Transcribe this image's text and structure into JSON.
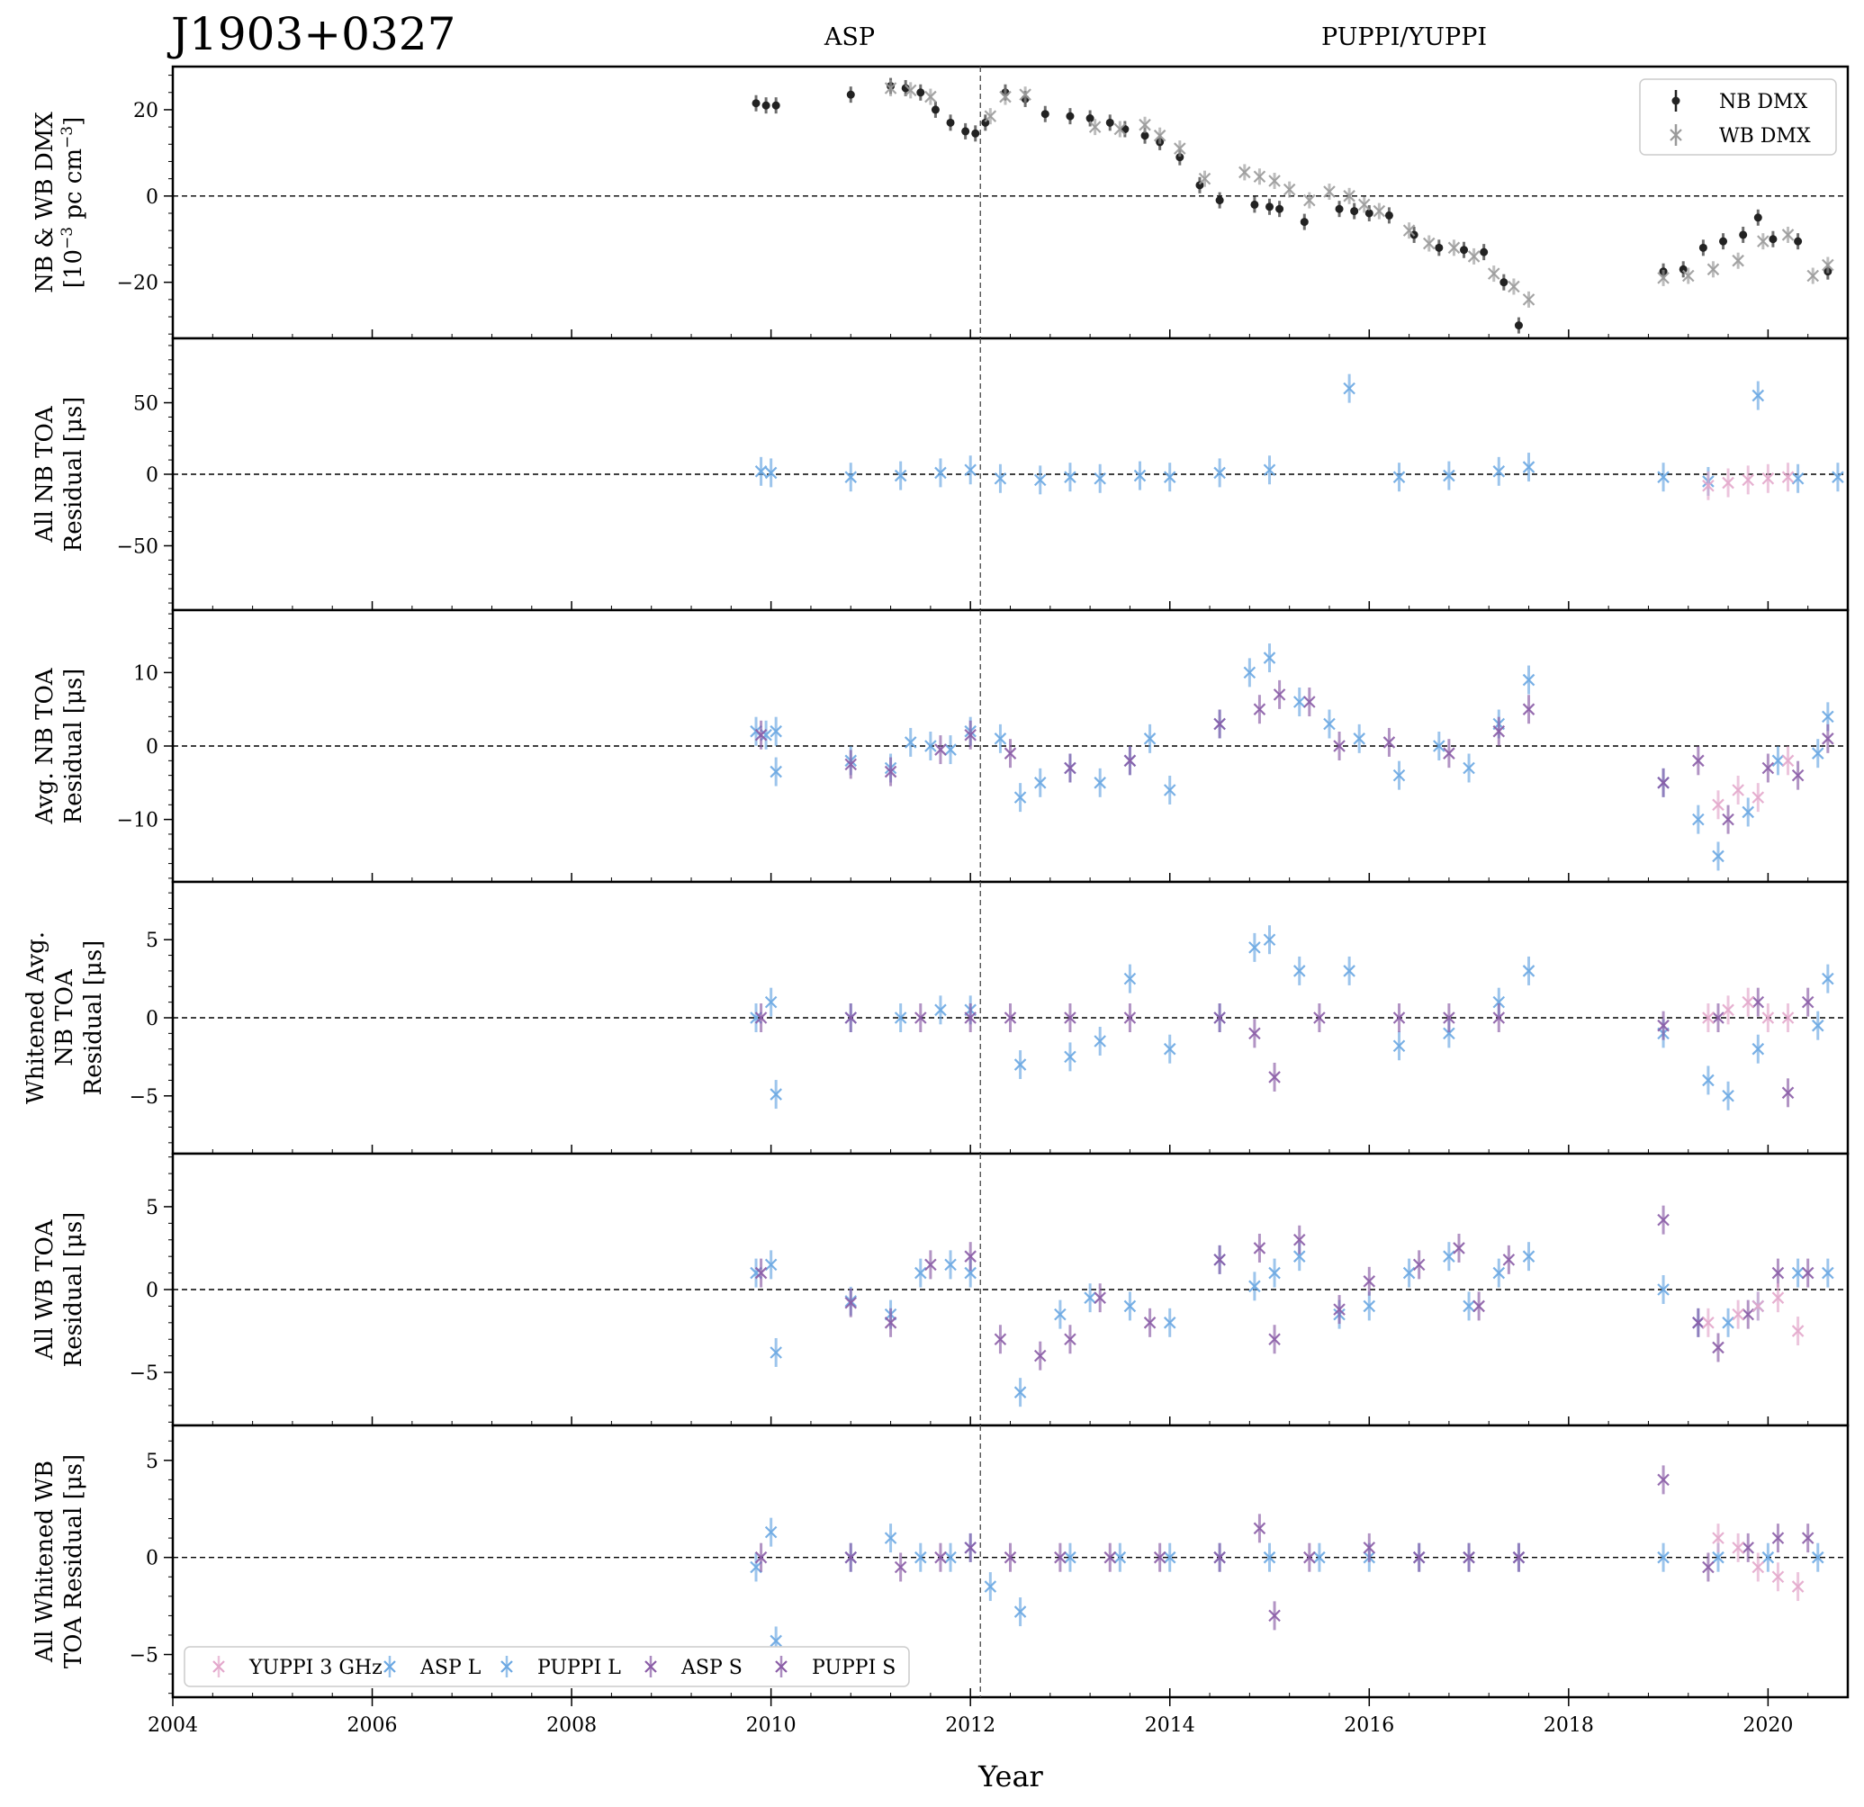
{
  "title": "J1903+0327",
  "eras": [
    "ASP",
    "PUPPI/YUPPI"
  ],
  "xlabel": "Year",
  "x_ticks": [
    2004,
    2006,
    2008,
    2010,
    2012,
    2014,
    2016,
    2018,
    2020
  ],
  "xlim": [
    2004,
    2020.8
  ],
  "backend_switch_year": 2012.1,
  "colors": {
    "nb_dmx": "#222222",
    "wb_dmx": "#9a9a9a",
    "yuppi_3ghz": "#e3a7cb",
    "asp_l": "#6aa7e2",
    "puppi_l": "#6aa7e2",
    "asp_s": "#8a5ca6",
    "puppi_s": "#8a5ca6"
  },
  "legends": {
    "dmx": [
      "NB DMX",
      "WB DMX"
    ],
    "backends": [
      "YUPPI 3 GHz",
      "ASP L",
      "PUPPI L",
      "ASP S",
      "PUPPI S"
    ]
  },
  "panels": [
    {
      "id": "dmx",
      "ylabel_lines": [
        "NB & WB DMX",
        "[10",
        "−3",
        " pc cm",
        "−3",
        "]"
      ],
      "ylim": [
        -33,
        30
      ],
      "yticks": [
        -20,
        0,
        20
      ],
      "ytick_labels": [
        "−20",
        "0",
        "20"
      ]
    },
    {
      "id": "all_nb",
      "ylabel_lines": [
        "All NB TOA",
        "Residual [μs]"
      ],
      "ylim": [
        -95,
        95
      ],
      "yticks": [
        -50,
        0,
        50
      ],
      "ytick_labels": [
        "−50",
        "0",
        "50"
      ]
    },
    {
      "id": "avg_nb",
      "ylabel_lines": [
        "Avg. NB TOA",
        "Residual [μs]"
      ],
      "ylim": [
        -18.5,
        18.5
      ],
      "yticks": [
        -10,
        0,
        10
      ],
      "ytick_labels": [
        "−10",
        "0",
        "10"
      ]
    },
    {
      "id": "white_avg_nb",
      "ylabel_lines": [
        "Whitened Avg.",
        "NB TOA",
        "Residual [μs]"
      ],
      "ylim": [
        -8.7,
        8.7
      ],
      "yticks": [
        -5,
        0,
        5
      ],
      "ytick_labels": [
        "−5",
        "0",
        "5"
      ]
    },
    {
      "id": "all_wb",
      "ylabel_lines": [
        "All WB TOA",
        "Residual [μs]"
      ],
      "ylim": [
        -8.2,
        8.2
      ],
      "yticks": [
        -5,
        0,
        5
      ],
      "ytick_labels": [
        "−5",
        "0",
        "5"
      ]
    },
    {
      "id": "white_wb",
      "ylabel_lines": [
        "All Whitened WB",
        "TOA Residual [μs]"
      ],
      "ylim": [
        -7.2,
        6.8
      ],
      "yticks": [
        -5,
        0,
        5
      ],
      "ytick_labels": [
        "−5",
        "0",
        "5"
      ]
    }
  ],
  "chart_data": {
    "type": "scatter",
    "title": "J1903+0327",
    "xlabel": "Year",
    "xlim": [
      2004,
      2020.8
    ],
    "panels": {
      "dmx": {
        "series": [
          {
            "name": "NB DMX",
            "x": [
              2009.85,
              2009.95,
              2010.05,
              2010.8,
              2011.2,
              2011.35,
              2011.5,
              2011.65,
              2011.8,
              2011.95,
              2012.05,
              2012.15,
              2012.35,
              2012.55,
              2012.75,
              2013.0,
              2013.2,
              2013.4,
              2013.55,
              2013.75,
              2013.9,
              2014.1,
              2014.3,
              2014.5,
              2014.85,
              2015.0,
              2015.1,
              2015.35,
              2015.7,
              2015.85,
              2016.0,
              2016.2,
              2016.45,
              2016.7,
              2016.95,
              2017.15,
              2017.35,
              2017.5,
              2018.95,
              2019.15,
              2019.35,
              2019.55,
              2019.75,
              2019.9,
              2020.05,
              2020.3,
              2020.6
            ],
            "y": [
              21.5,
              21,
              21,
              23.5,
              25.5,
              25,
              24,
              20,
              17,
              15,
              14.5,
              17,
              24,
              22.5,
              19,
              18.5,
              18,
              17,
              15.5,
              14,
              12.5,
              9,
              2.5,
              -1,
              -2,
              -2.5,
              -3,
              -6,
              -3,
              -3.5,
              -4,
              -4.5,
              -9,
              -12,
              -12.5,
              -13,
              -20,
              -30,
              -17.5,
              -17,
              -12,
              -10.5,
              -9,
              -5,
              -10,
              -10.5,
              -17.5
            ]
          },
          {
            "name": "WB DMX",
            "x": [
              2011.2,
              2011.4,
              2011.6,
              2012.2,
              2012.35,
              2012.55,
              2013.25,
              2013.5,
              2013.75,
              2013.9,
              2014.1,
              2014.35,
              2014.75,
              2014.9,
              2015.05,
              2015.2,
              2015.4,
              2015.6,
              2015.8,
              2015.95,
              2016.1,
              2016.4,
              2016.6,
              2016.85,
              2017.05,
              2017.25,
              2017.45,
              2017.6,
              2018.95,
              2019.2,
              2019.45,
              2019.7,
              2019.95,
              2020.2,
              2020.45,
              2020.6
            ],
            "y": [
              25,
              24.5,
              23,
              18.5,
              23,
              23.5,
              16,
              15.5,
              16.5,
              14,
              11,
              4,
              5.5,
              4.5,
              3.5,
              1.5,
              -1,
              1,
              0,
              -2,
              -3.5,
              -8,
              -11,
              -12,
              -14,
              -18,
              -21,
              -24,
              -19,
              -18.5,
              -17,
              -15,
              -10.5,
              -9,
              -18.5,
              -16
            ]
          }
        ]
      },
      "all_nb": {
        "series": [
          {
            "name": "ASP L",
            "x": [
              2009.9,
              2010.0,
              2010.8,
              2011.3,
              2011.7,
              2012.0
            ],
            "y": [
              2,
              1,
              -2,
              -1,
              1,
              3
            ]
          },
          {
            "name": "PUPPI L",
            "x": [
              2012.3,
              2012.7,
              2013.0,
              2013.3,
              2013.7,
              2014.0,
              2014.5,
              2015.0,
              2015.8,
              2016.3,
              2016.8,
              2017.3,
              2017.6,
              2018.95,
              2019.4,
              2019.9,
              2020.3,
              2020.7
            ],
            "y": [
              -3,
              -4,
              -2,
              -3,
              -1,
              -2,
              1,
              3,
              60,
              -2,
              -1,
              2,
              5,
              -2,
              -5,
              55,
              -3,
              -2
            ]
          },
          {
            "name": "YUPPI 3 GHz",
            "x": [
              2019.4,
              2019.6,
              2019.8,
              2020.0,
              2020.2
            ],
            "y": [
              -8,
              -6,
              -4,
              -3,
              -2
            ]
          }
        ]
      },
      "avg_nb": {
        "series": [
          {
            "name": "ASP L",
            "x": [
              2009.85,
              2009.95,
              2010.05,
              2010.05,
              2010.8,
              2011.2,
              2011.4,
              2011.6,
              2011.8,
              2012.0
            ],
            "y": [
              2,
              1.5,
              2,
              -3.5,
              -2,
              -3,
              0.5,
              0,
              -0.5,
              2
            ]
          },
          {
            "name": "PUPPI L",
            "x": [
              2012.3,
              2012.5,
              2012.7,
              2013.0,
              2013.3,
              2013.6,
              2013.8,
              2014.0,
              2014.5,
              2014.8,
              2015.0,
              2015.3,
              2015.6,
              2015.9,
              2016.3,
              2016.7,
              2017.0,
              2017.3,
              2017.6,
              2018.95,
              2019.3,
              2019.5,
              2019.8,
              2020.1,
              2020.5,
              2020.6
            ],
            "y": [
              1,
              -7,
              -5,
              -3,
              -5,
              -2,
              1,
              -6,
              3,
              10,
              12,
              6,
              3,
              1,
              -4,
              0,
              -3,
              3,
              9,
              -5,
              -10,
              -15,
              -9,
              -2,
              -1,
              4
            ]
          },
          {
            "name": "ASP S",
            "x": [
              2009.9,
              2010.8,
              2011.2,
              2011.7,
              2012.0
            ],
            "y": [
              1.5,
              -2.5,
              -3.5,
              -0.5,
              1.5
            ]
          },
          {
            "name": "PUPPI S",
            "x": [
              2012.4,
              2013.0,
              2013.6,
              2014.5,
              2014.9,
              2015.1,
              2015.4,
              2015.7,
              2016.2,
              2016.8,
              2017.3,
              2017.6,
              2018.95,
              2019.3,
              2019.6,
              2020.0,
              2020.3,
              2020.6
            ],
            "y": [
              -1,
              -3,
              -2,
              3,
              5,
              7,
              6,
              0,
              0.5,
              -1,
              2,
              5,
              -5,
              -2,
              -10,
              -3,
              -4,
              1
            ]
          },
          {
            "name": "YUPPI 3 GHz",
            "x": [
              2019.5,
              2019.7,
              2019.9,
              2020.2
            ],
            "y": [
              -8,
              -6,
              -7,
              -2
            ]
          }
        ]
      },
      "white_avg_nb": {
        "series": [
          {
            "name": "ASP L",
            "x": [
              2009.85,
              2010.0,
              2010.05,
              2010.8,
              2011.3,
              2011.7,
              2012.0
            ],
            "y": [
              0,
              1,
              -4.9,
              0,
              0,
              0.5,
              0.5
            ]
          },
          {
            "name": "PUPPI L",
            "x": [
              2012.5,
              2013.0,
              2013.3,
              2013.6,
              2014.0,
              2014.5,
              2014.85,
              2015.0,
              2015.3,
              2015.8,
              2016.3,
              2016.8,
              2017.3,
              2017.6,
              2018.95,
              2019.4,
              2019.6,
              2019.9,
              2020.5,
              2020.6
            ],
            "y": [
              -3,
              -2.5,
              -1.5,
              2.5,
              -2,
              0,
              4.5,
              5,
              3,
              3,
              -1.8,
              -1,
              1,
              3,
              -1,
              -4,
              -5,
              -2,
              -0.5,
              2.5
            ]
          },
          {
            "name": "ASP S",
            "x": [
              2009.9,
              2010.8,
              2011.5,
              2012.0
            ],
            "y": [
              0,
              0,
              0,
              0
            ]
          },
          {
            "name": "PUPPI S",
            "x": [
              2012.4,
              2013.0,
              2013.6,
              2014.5,
              2014.85,
              2015.05,
              2015.5,
              2016.3,
              2016.8,
              2017.3,
              2018.95,
              2019.5,
              2019.9,
              2020.2,
              2020.4
            ],
            "y": [
              0,
              0,
              0,
              0,
              -1,
              -3.8,
              0,
              0,
              0,
              0,
              -0.5,
              0,
              1,
              -4.8,
              1
            ]
          },
          {
            "name": "YUPPI 3 GHz",
            "x": [
              2019.4,
              2019.6,
              2019.8,
              2020.0,
              2020.2
            ],
            "y": [
              0,
              0.5,
              1,
              0,
              0
            ]
          }
        ]
      },
      "all_wb": {
        "series": [
          {
            "name": "ASP L",
            "x": [
              2009.85,
              2010.0,
              2010.05,
              2010.8,
              2011.2,
              2011.5,
              2011.8,
              2012.0
            ],
            "y": [
              1,
              1.5,
              -3.8,
              -0.7,
              -1.5,
              1,
              1.5,
              1
            ]
          },
          {
            "name": "PUPPI L",
            "x": [
              2012.5,
              2012.9,
              2013.2,
              2013.6,
              2014.0,
              2014.5,
              2014.85,
              2015.05,
              2015.3,
              2015.7,
              2016.0,
              2016.4,
              2016.8,
              2017.0,
              2017.3,
              2017.6,
              2018.95,
              2019.3,
              2019.6,
              2019.9,
              2020.3,
              2020.6
            ],
            "y": [
              -6.2,
              -1.5,
              -0.5,
              -1,
              -2,
              1.8,
              0.2,
              1,
              2,
              -1.5,
              -1,
              1,
              2,
              -1,
              1,
              2,
              0,
              -2,
              -2,
              -1,
              1,
              1
            ]
          },
          {
            "name": "ASP S",
            "x": [
              2009.9,
              2010.8,
              2011.2,
              2011.6,
              2012.0
            ],
            "y": [
              1,
              -0.8,
              -2,
              1.5,
              2
            ]
          },
          {
            "name": "PUPPI S",
            "x": [
              2012.3,
              2012.7,
              2013.0,
              2013.3,
              2013.8,
              2014.5,
              2014.9,
              2015.05,
              2015.3,
              2015.7,
              2016.0,
              2016.5,
              2016.9,
              2017.1,
              2017.4,
              2018.95,
              2019.3,
              2019.5,
              2019.8,
              2020.1,
              2020.4
            ],
            "y": [
              -3,
              -4,
              -3,
              -0.5,
              -2,
              1.8,
              2.5,
              -3,
              3,
              -1.2,
              0.5,
              1.5,
              2.5,
              -1,
              1.8,
              4.2,
              -2,
              -3.5,
              -1.5,
              1,
              1
            ]
          },
          {
            "name": "YUPPI 3 GHz",
            "x": [
              2019.4,
              2019.7,
              2019.9,
              2020.1,
              2020.3
            ],
            "y": [
              -2,
              -1.5,
              -1,
              -0.5,
              -2.5
            ]
          }
        ]
      },
      "white_wb": {
        "series": [
          {
            "name": "ASP L",
            "x": [
              2009.85,
              2010.0,
              2010.05,
              2010.8,
              2011.2,
              2011.5,
              2011.8,
              2012.0,
              2012.2
            ],
            "y": [
              -0.5,
              1.3,
              -4.3,
              0,
              1,
              0,
              0,
              0.5,
              -1.5
            ]
          },
          {
            "name": "PUPPI L",
            "x": [
              2012.5,
              2013.0,
              2013.5,
              2014.0,
              2014.5,
              2015.0,
              2015.5,
              2016.0,
              2016.5,
              2017.0,
              2017.5,
              2018.95,
              2019.5,
              2020.0,
              2020.5
            ],
            "y": [
              -2.8,
              0,
              0,
              0,
              0,
              0,
              0,
              0,
              0,
              0,
              0,
              0,
              0,
              0,
              0
            ]
          },
          {
            "name": "ASP S",
            "x": [
              2009.9,
              2010.8,
              2011.3,
              2011.7,
              2012.0
            ],
            "y": [
              0,
              0,
              -0.5,
              0,
              0.5
            ]
          },
          {
            "name": "PUPPI S",
            "x": [
              2012.4,
              2012.9,
              2013.4,
              2013.9,
              2014.5,
              2014.9,
              2015.05,
              2015.4,
              2016.0,
              2016.5,
              2017.0,
              2017.5,
              2018.95,
              2019.4,
              2019.8,
              2020.1,
              2020.4
            ],
            "y": [
              0,
              0,
              0,
              0,
              0,
              1.5,
              -3,
              0,
              0.5,
              0,
              0,
              0,
              4,
              -0.5,
              0.5,
              1,
              1
            ]
          },
          {
            "name": "YUPPI 3 GHz",
            "x": [
              2019.5,
              2019.7,
              2019.9,
              2020.1,
              2020.3
            ],
            "y": [
              1,
              0.5,
              -0.5,
              -1,
              -1.5
            ]
          }
        ]
      }
    }
  }
}
